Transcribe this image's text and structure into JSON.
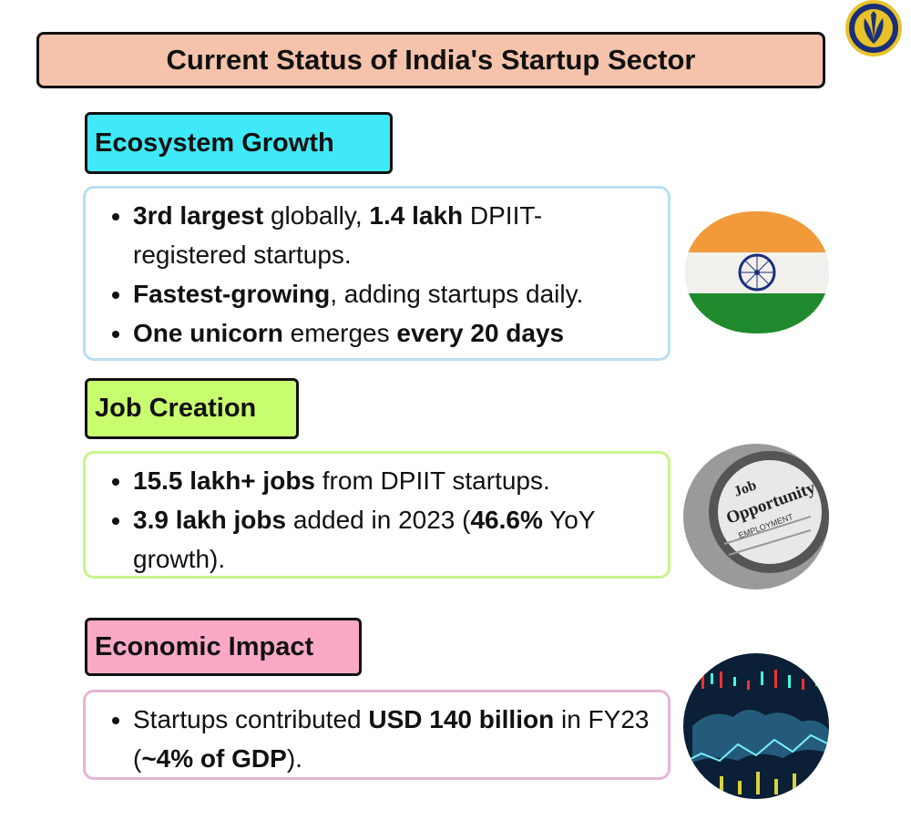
{
  "title": "Current Status of India's Startup Sector",
  "logo": {
    "icon": "emblem-logo-icon"
  },
  "sections": [
    {
      "label": "Ecosystem Growth",
      "label_color": "#3fe9f7",
      "border_color": "#b9dff0",
      "image": "india-flag-icon",
      "bullets": [
        [
          {
            "t": "3rd largest",
            "b": true
          },
          {
            "t": " globally, ",
            "b": false
          },
          {
            "t": "1.4 lakh",
            "b": true
          },
          {
            "t": " DPIIT-registered startups.",
            "b": false
          }
        ],
        [
          {
            "t": "Fastest-growing",
            "b": true
          },
          {
            "t": ", adding startups daily.",
            "b": false
          }
        ],
        [
          {
            "t": "One unicorn",
            "b": true
          },
          {
            "t": " emerges ",
            "b": false
          },
          {
            "t": "every 20 days",
            "b": true
          }
        ]
      ]
    },
    {
      "label": "Job Creation",
      "label_color": "#c9fd70",
      "border_color": "#c8f48a",
      "image": "job-opportunity-newspaper-magnifier-icon",
      "image_text": [
        "Job",
        "Opportunity",
        "EMPLOYMENT"
      ],
      "bullets": [
        [
          {
            "t": "15.5 lakh+ jobs",
            "b": true
          },
          {
            "t": " from DPIIT startups.",
            "b": false
          }
        ],
        [
          {
            "t": "3.9 lakh jobs",
            "b": true
          },
          {
            "t": " added in 2023 (",
            "b": false
          },
          {
            "t": "46.6%",
            "b": true
          },
          {
            "t": " YoY growth).",
            "b": false
          }
        ]
      ]
    },
    {
      "label": "Economic Impact",
      "label_color": "#fba9c6",
      "border_color": "#e3b6d6",
      "image": "stock-market-world-map-icon",
      "bullets": [
        [
          {
            "t": "Startups contributed ",
            "b": false
          },
          {
            "t": "USD 140 billion",
            "b": true
          },
          {
            "t": " in FY23 (",
            "b": false
          },
          {
            "t": "~4% of GDP",
            "b": true
          },
          {
            "t": ").",
            "b": false
          }
        ]
      ]
    }
  ]
}
